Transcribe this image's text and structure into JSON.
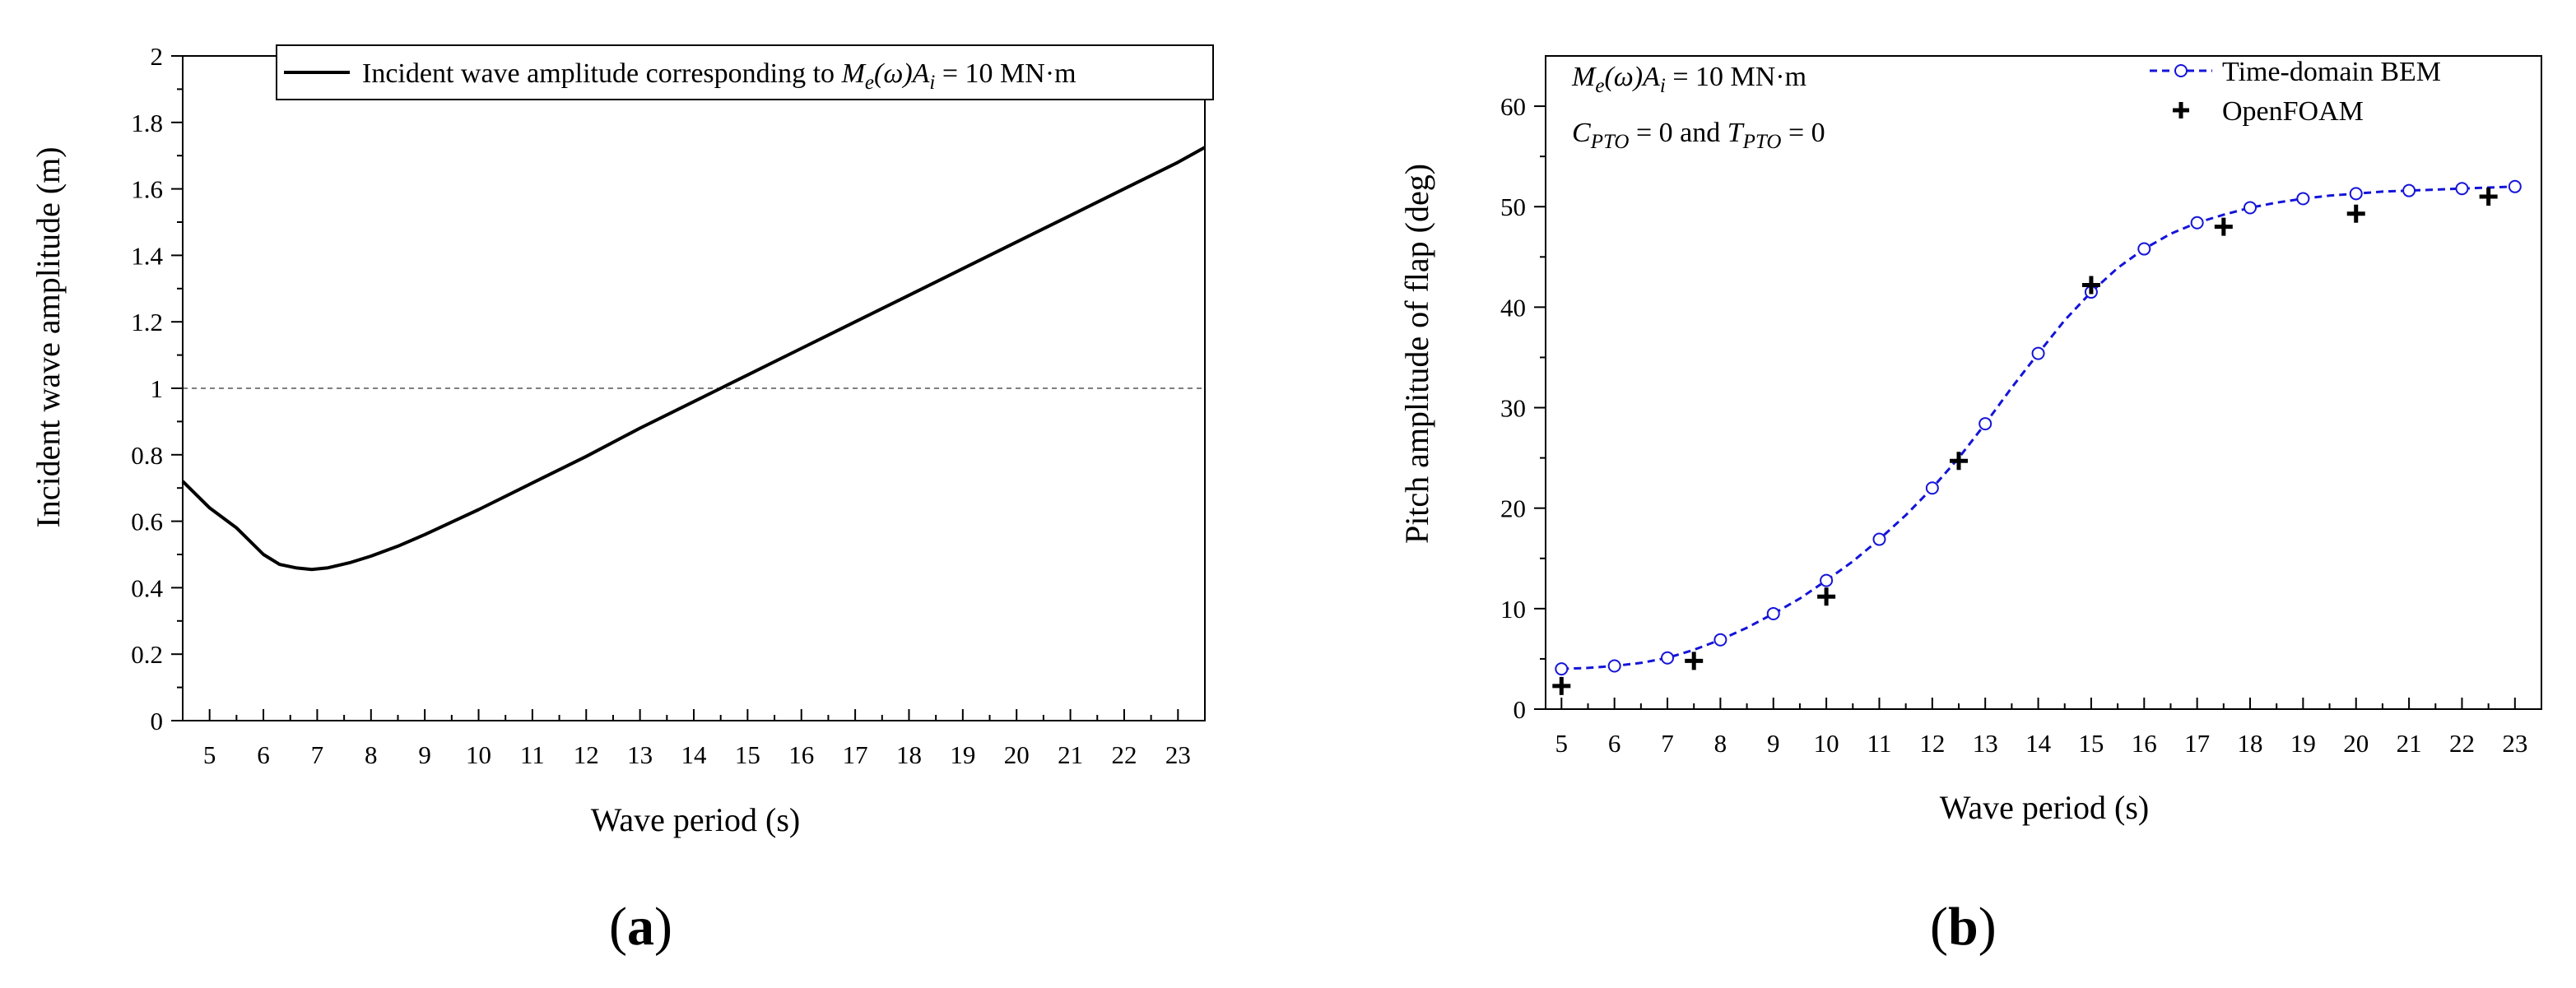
{
  "chart_data": [
    {
      "id": "a",
      "type": "line",
      "panel_label": [
        "(",
        "a",
        ")"
      ],
      "xlabel": "Wave period (s)",
      "ylabel": "Incident wave amplitude (m)",
      "xlim": [
        4.5,
        23.5
      ],
      "ylim": [
        0,
        2
      ],
      "xticks": [
        5,
        6,
        7,
        8,
        9,
        10,
        11,
        12,
        13,
        14,
        15,
        16,
        17,
        18,
        19,
        20,
        21,
        22,
        23
      ],
      "yticks": [
        0,
        0.2,
        0.4,
        0.6,
        0.8,
        1,
        1.2,
        1.4,
        1.6,
        1.8,
        2
      ],
      "ytick_labels": [
        "0",
        "0.2",
        "0.4",
        "0.6",
        "0.8",
        "1",
        "1.2",
        "1.4",
        "1.6",
        "1.8",
        "2"
      ],
      "reference_line": {
        "y": 1,
        "style": "dashed"
      },
      "legend": {
        "position": "top-right",
        "label_prefix": "Incident wave amplitude corresponding to ",
        "label_math": [
          "M",
          "e",
          "(ω)A",
          "i"
        ],
        "label_suffix": " = 10 MN·m"
      },
      "series": [
        {
          "name": "Incident wave amplitude corresponding to Me(ω)Ai = 10 MN·m",
          "color": "#000000",
          "x": [
            4.5,
            5.0,
            5.5,
            6.0,
            6.3,
            6.6,
            6.9,
            7.2,
            7.6,
            8.0,
            8.5,
            9.0,
            10.0,
            11.0,
            12.0,
            13.0,
            14.0,
            14.5,
            15.0,
            16.0,
            17.0,
            18.0,
            19.0,
            20.0,
            21.0,
            22.0,
            23.0,
            23.5
          ],
          "y": [
            0.72,
            0.64,
            0.58,
            0.5,
            0.47,
            0.46,
            0.455,
            0.46,
            0.475,
            0.495,
            0.525,
            0.56,
            0.635,
            0.715,
            0.795,
            0.88,
            0.96,
            1.0,
            1.04,
            1.12,
            1.2,
            1.28,
            1.36,
            1.44,
            1.52,
            1.6,
            1.68,
            1.725
          ]
        }
      ]
    },
    {
      "id": "b",
      "type": "line",
      "panel_label": [
        "(",
        "b",
        ")"
      ],
      "xlabel": "Wave period (s)",
      "ylabel": "Pitch amplitude of flap (deg)",
      "xlim": [
        4.7,
        23.5
      ],
      "ylim": [
        0,
        65
      ],
      "xticks": [
        5,
        6,
        7,
        8,
        9,
        10,
        11,
        12,
        13,
        14,
        15,
        16,
        17,
        18,
        19,
        20,
        21,
        22,
        23
      ],
      "yticks": [
        0,
        10,
        20,
        30,
        40,
        50,
        60
      ],
      "annotations": {
        "line1_math": [
          "M",
          "e",
          "(ω)A",
          "i"
        ],
        "line1_suffix": " = 10 MN·m",
        "line2_c": [
          "C",
          "PTO"
        ],
        "line2_mid": " = 0 and ",
        "line2_t": [
          "T",
          "PTO"
        ],
        "line2_suffix": " = 0"
      },
      "legend": {
        "position": "top-right"
      },
      "series": [
        {
          "name": "Time-domain BEM",
          "color": "#1414d9",
          "style": "dashed line with open circle markers",
          "x": [
            5,
            5.5,
            6,
            6.5,
            7,
            7.5,
            8,
            8.5,
            9,
            9.5,
            10,
            10.5,
            11,
            11.5,
            12,
            12.5,
            13,
            13.5,
            14,
            14.5,
            15,
            15.5,
            16,
            16.5,
            17,
            17.5,
            18,
            18.5,
            19,
            19.5,
            20,
            20.5,
            21,
            21.5,
            22,
            22.5,
            23
          ],
          "y": [
            4.0,
            4.1,
            4.3,
            4.6,
            5.1,
            5.9,
            6.9,
            8.1,
            9.5,
            11.0,
            12.8,
            14.7,
            16.9,
            19.3,
            22.0,
            25.0,
            28.4,
            32.0,
            35.4,
            38.7,
            41.5,
            43.9,
            45.8,
            47.3,
            48.4,
            49.2,
            49.9,
            50.4,
            50.8,
            51.1,
            51.3,
            51.5,
            51.6,
            51.7,
            51.8,
            51.9,
            52.0
          ],
          "marker_x": [
            5,
            6,
            7,
            8,
            9,
            10,
            11,
            12,
            13,
            14,
            15,
            16,
            17,
            18,
            19,
            20,
            21,
            22,
            23
          ],
          "marker_y": [
            4.0,
            4.3,
            5.1,
            6.9,
            9.5,
            12.8,
            16.9,
            22.0,
            28.4,
            35.4,
            41.5,
            45.8,
            48.4,
            49.9,
            50.8,
            51.3,
            51.6,
            51.8,
            52.0
          ]
        },
        {
          "name": "OpenFOAM",
          "color": "#000000",
          "style": "plus markers",
          "x": [
            5,
            7.5,
            10,
            12.5,
            15,
            17.5,
            20,
            22.5
          ],
          "y": [
            2.3,
            4.8,
            11.2,
            24.7,
            42.2,
            48.0,
            49.3,
            51.0
          ]
        }
      ]
    }
  ]
}
